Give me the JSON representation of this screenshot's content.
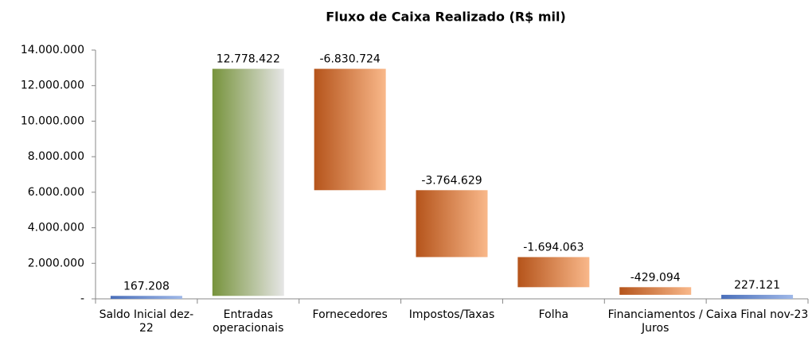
{
  "chart_data": {
    "type": "waterfall",
    "title": "Fluxo de Caixa Realizado (R$ mil)",
    "categories": [
      "Saldo Inicial dez-22",
      "Entradas operacionais",
      "Fornecedores",
      "Impostos/Taxas",
      "Folha",
      "Financiamentos / Juros",
      "Caixa Final nov-23"
    ],
    "values": [
      167208,
      12778422,
      -6830724,
      -3764629,
      -1694063,
      -429094,
      227121
    ],
    "value_labels": [
      "167.208",
      "12.778.422",
      "-6.830.724",
      "-3.764.629",
      "-1.694.063",
      "-429.094",
      "227.121"
    ],
    "colors": [
      "#4a6fba",
      "#77933c",
      "#b5541b",
      "#b5541b",
      "#b5541b",
      "#b5541b",
      "#4a6fba"
    ],
    "ylim": [
      0,
      14000000
    ],
    "yticks": [
      {
        "value": 0,
        "label": "-"
      },
      {
        "value": 2000000,
        "label": "2.000.000"
      },
      {
        "value": 4000000,
        "label": "4.000.000"
      },
      {
        "value": 6000000,
        "label": "6.000.000"
      },
      {
        "value": 8000000,
        "label": "8.000.000"
      },
      {
        "value": 10000000,
        "label": "10.000.000"
      },
      {
        "value": 12000000,
        "label": "12.000.000"
      },
      {
        "value": 14000000,
        "label": "14.000.000"
      }
    ]
  }
}
